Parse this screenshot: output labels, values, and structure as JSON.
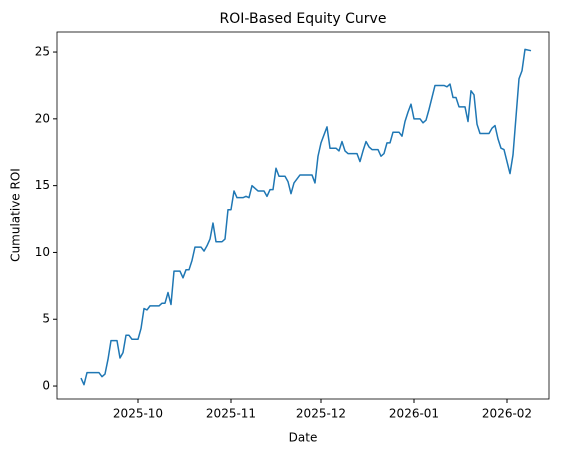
{
  "chart_data": {
    "type": "line",
    "title": "ROI-Based Equity Curve",
    "x_label": "Date",
    "y_label": "Cumulative ROI",
    "series": [
      {
        "color": "#1f77b4",
        "x": [
          20343,
          20344,
          20345,
          20346,
          20348,
          20349,
          20350,
          20351,
          20352,
          20353,
          20355,
          20356,
          20357,
          20358,
          20359,
          20360,
          20362,
          20363,
          20364,
          20365,
          20366,
          20368,
          20369,
          20370,
          20371,
          20372,
          20373,
          20374,
          20376,
          20377,
          20378,
          20379,
          20380,
          20381,
          20383,
          20384,
          20385,
          20386,
          20387,
          20388,
          20390,
          20391,
          20392,
          20393,
          20394,
          20395,
          20397,
          20398,
          20399,
          20400,
          20401,
          20402,
          20404,
          20405,
          20406,
          20407,
          20408,
          20409,
          20411,
          20412,
          20413,
          20414,
          20415,
          20416,
          20420,
          20421,
          20422,
          20423,
          20425,
          20426,
          20428,
          20429,
          20430,
          20431,
          20432,
          20435,
          20436,
          20437,
          20438,
          20439,
          20440,
          20442,
          20443,
          20444,
          20445,
          20446,
          20447,
          20449,
          20450,
          20451,
          20452,
          20453,
          20454,
          20456,
          20457,
          20458,
          20459,
          20460,
          20461,
          20464,
          20465,
          20466,
          20467,
          20468,
          20469,
          20471,
          20472,
          20473,
          20474,
          20475,
          20476,
          20479,
          20480,
          20481,
          20482,
          20483,
          20484,
          20486,
          20487,
          20489,
          20490,
          20491,
          20493
        ],
        "values": [
          0.6,
          0.1,
          1.0,
          1.0,
          1.0,
          1.0,
          0.7,
          0.9,
          2.0,
          3.4,
          3.4,
          2.1,
          2.5,
          3.8,
          3.8,
          3.5,
          3.5,
          4.3,
          5.8,
          5.7,
          6.0,
          6.0,
          6.0,
          6.2,
          6.2,
          7.0,
          6.1,
          8.6,
          8.6,
          8.1,
          8.7,
          8.7,
          9.4,
          10.4,
          10.4,
          10.1,
          10.5,
          11.0,
          12.2,
          10.8,
          10.8,
          11.0,
          13.2,
          13.2,
          14.6,
          14.1,
          14.1,
          14.2,
          14.1,
          15.0,
          14.8,
          14.6,
          14.6,
          14.2,
          14.7,
          14.7,
          16.3,
          15.7,
          15.7,
          15.3,
          14.4,
          15.2,
          15.5,
          15.8,
          15.8,
          15.2,
          17.2,
          18.2,
          19.4,
          17.8,
          17.8,
          17.6,
          18.3,
          17.6,
          17.4,
          17.4,
          16.8,
          17.6,
          18.3,
          17.9,
          17.7,
          17.7,
          17.2,
          17.4,
          18.2,
          18.2,
          19.0,
          19.0,
          18.7,
          19.8,
          20.5,
          21.1,
          20.0,
          20.0,
          19.7,
          19.9,
          20.7,
          21.6,
          22.5,
          22.5,
          22.4,
          22.6,
          21.6,
          21.6,
          20.9,
          20.9,
          19.8,
          22.1,
          21.8,
          19.6,
          18.9,
          18.9,
          19.3,
          19.5,
          18.5,
          17.8,
          17.7,
          15.9,
          17.3,
          23.0,
          23.6,
          25.2,
          25.1
        ]
      }
    ],
    "xlim": [
      20335,
      20499
    ],
    "xticks": [
      {
        "value": 20362,
        "label": "2025-10"
      },
      {
        "value": 20393,
        "label": "2025-11"
      },
      {
        "value": 20423,
        "label": "2025-12"
      },
      {
        "value": 20454,
        "label": "2026-01"
      },
      {
        "value": 20485,
        "label": "2026-02"
      }
    ],
    "ylim": [
      -0.97,
      26.5
    ],
    "yticks": [
      0,
      5,
      10,
      15,
      20,
      25
    ],
    "grid": false
  }
}
